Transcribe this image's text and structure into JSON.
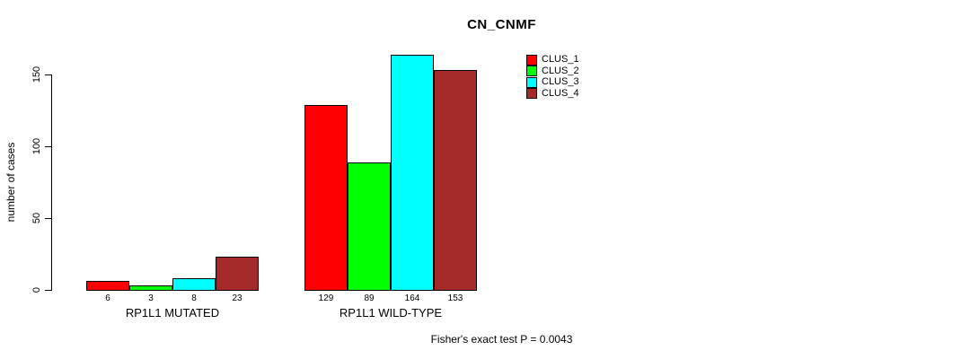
{
  "chart_data": {
    "type": "bar",
    "title": "CN_CNMF",
    "xlabel": "",
    "ylabel": "number of cases",
    "ylim": [
      0,
      170
    ],
    "yticks": [
      0,
      50,
      100,
      150
    ],
    "grid": false,
    "legend_position": "top-right",
    "categories": [
      "RP1L1 MUTATED",
      "RP1L1 WILD-TYPE"
    ],
    "series": [
      {
        "name": "CLUS_1",
        "color": "#FF0000",
        "values": [
          6,
          129
        ]
      },
      {
        "name": "CLUS_2",
        "color": "#00FF00",
        "values": [
          3,
          89
        ]
      },
      {
        "name": "CLUS_3",
        "color": "#00FFFF",
        "values": [
          8,
          164
        ]
      },
      {
        "name": "CLUS_4",
        "color": "#A52A2A",
        "values": [
          23,
          153
        ]
      }
    ],
    "bar_labels": [
      [
        "6",
        "3",
        "8",
        "23"
      ],
      [
        "129",
        "89",
        "164",
        "153"
      ]
    ],
    "annotation": "Fisher's exact test P = 0.0043"
  }
}
